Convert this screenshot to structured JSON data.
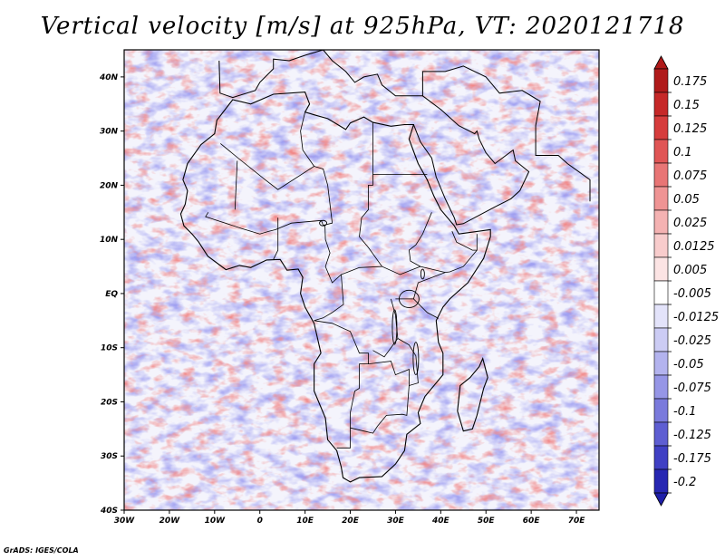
{
  "title": "Vertical velocity [m/s] at 925hPa, VT: 2020121718",
  "credit": "GrADS: IGES/COLA",
  "map": {
    "lon_range": [
      -30,
      75
    ],
    "lat_range": [
      -40,
      45
    ],
    "lon_ticks": [
      {
        "value": -30,
        "label": "30W"
      },
      {
        "value": -20,
        "label": "20W"
      },
      {
        "value": -10,
        "label": "10W"
      },
      {
        "value": 0,
        "label": "0"
      },
      {
        "value": 10,
        "label": "10E"
      },
      {
        "value": 20,
        "label": "20E"
      },
      {
        "value": 30,
        "label": "30E"
      },
      {
        "value": 40,
        "label": "40E"
      },
      {
        "value": 50,
        "label": "50E"
      },
      {
        "value": 60,
        "label": "60E"
      },
      {
        "value": 70,
        "label": "70E"
      }
    ],
    "lat_ticks": [
      {
        "value": 40,
        "label": "40N"
      },
      {
        "value": 30,
        "label": "30N"
      },
      {
        "value": 20,
        "label": "20N"
      },
      {
        "value": 10,
        "label": "10N"
      },
      {
        "value": 0,
        "label": "EQ"
      },
      {
        "value": -10,
        "label": "10S"
      },
      {
        "value": -20,
        "label": "20S"
      },
      {
        "value": -30,
        "label": "30S"
      },
      {
        "value": -40,
        "label": "40S"
      }
    ]
  },
  "colorbar": {
    "levels": [
      {
        "label": "0.175",
        "color": "#b01a1a"
      },
      {
        "label": "0.15",
        "color": "#c62828"
      },
      {
        "label": "0.125",
        "color": "#d63c3c"
      },
      {
        "label": "0.1",
        "color": "#e05555"
      },
      {
        "label": "0.075",
        "color": "#e87575"
      },
      {
        "label": "0.05",
        "color": "#ef9494"
      },
      {
        "label": "0.025",
        "color": "#f4b2b2"
      },
      {
        "label": "0.0125",
        "color": "#f8cccc"
      },
      {
        "label": "0.005",
        "color": "#fce4e4"
      },
      {
        "label": "-0.005",
        "color": "#ffffff"
      },
      {
        "label": "-0.0125",
        "color": "#e3e3fa"
      },
      {
        "label": "-0.025",
        "color": "#ccccf4"
      },
      {
        "label": "-0.05",
        "color": "#b3b3ee"
      },
      {
        "label": "-0.075",
        "color": "#9696e6"
      },
      {
        "label": "-0.1",
        "color": "#7a7adc"
      },
      {
        "label": "-0.125",
        "color": "#5e5ed2"
      },
      {
        "label": "-0.175",
        "color": "#4040c4"
      },
      {
        "label": "-0.2",
        "color": "#2727b2"
      }
    ],
    "top_color": "#b01a1a",
    "bottom_color": "#1f1fa8"
  },
  "colors": {
    "positive": "#e04a4a",
    "negative": "#5a5ae0",
    "coast": "#000000"
  }
}
